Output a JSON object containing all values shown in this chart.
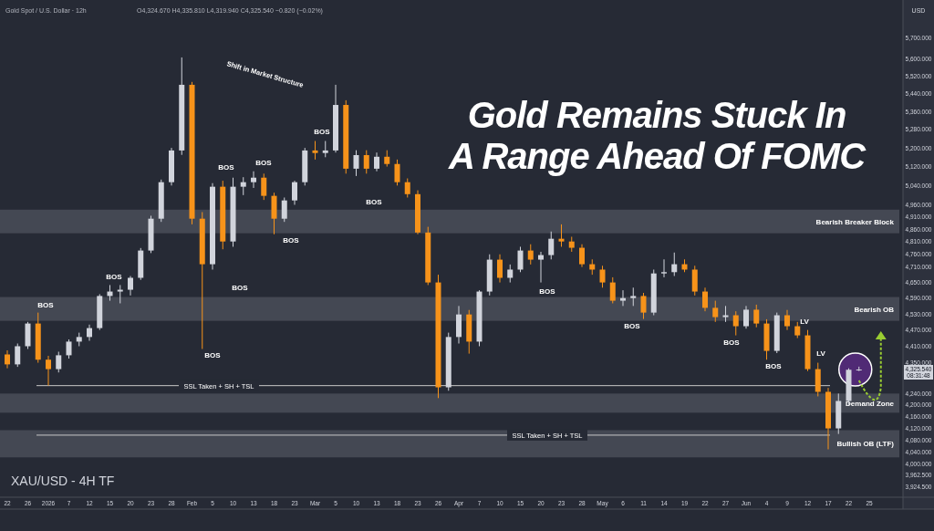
{
  "chart_data": {
    "type": "candlestick",
    "title": "Gold Remains Stuck In A Range Ahead Of FOMC",
    "subtitle": "XAU/USD - 4H TF",
    "categories": [
      "22",
      null,
      "26",
      null,
      "2026",
      null,
      "7",
      null,
      "12",
      null,
      "15",
      null,
      "20",
      null,
      "23",
      null,
      "28",
      null,
      "Feb",
      null,
      "5",
      null,
      "10",
      null,
      "13",
      null,
      "18",
      null,
      "23",
      null,
      "Mar",
      null,
      "5",
      null,
      "10",
      null,
      "13",
      null,
      "18",
      null,
      "23",
      null,
      "26",
      null,
      "Apr",
      null,
      "7",
      null,
      "10",
      null,
      "15",
      null,
      "20",
      null,
      "23",
      null,
      "28",
      null,
      "May",
      null,
      "6",
      null,
      "11",
      null,
      "14",
      null,
      "19",
      null,
      "22",
      null,
      "27",
      null,
      "Jun",
      null,
      "4",
      null,
      "9",
      null,
      "12",
      null,
      "17",
      null,
      "22",
      null,
      "25"
    ],
    "ohlc": [
      [
        4380,
        4395,
        4330,
        4344
      ],
      [
        4344,
        4420,
        4335,
        4410
      ],
      [
        4410,
        4500,
        4400,
        4494
      ],
      [
        4494,
        4535,
        4350,
        4361
      ],
      [
        4361,
        4375,
        4268,
        4327
      ],
      [
        4327,
        4390,
        4315,
        4377
      ],
      [
        4377,
        4435,
        4365,
        4427
      ],
      [
        4427,
        4460,
        4410,
        4444
      ],
      [
        4444,
        4490,
        4430,
        4477
      ],
      [
        4477,
        4605,
        4470,
        4598
      ],
      [
        4598,
        4640,
        4580,
        4615
      ],
      [
        4615,
        4640,
        4570,
        4622
      ],
      [
        4622,
        4675,
        4600,
        4668
      ],
      [
        4668,
        4785,
        4660,
        4775
      ],
      [
        4775,
        4915,
        4765,
        4903
      ],
      [
        4903,
        5065,
        4890,
        5054
      ],
      [
        5054,
        5200,
        5040,
        5189
      ],
      [
        5189,
        5606,
        5170,
        5480
      ],
      [
        5480,
        5493,
        4880,
        4903
      ],
      [
        4903,
        4930,
        4400,
        4721
      ],
      [
        4721,
        5050,
        4700,
        5035
      ],
      [
        5035,
        5060,
        4780,
        4811
      ],
      [
        4811,
        5073,
        4790,
        5035
      ],
      [
        5035,
        5075,
        5000,
        5054
      ],
      [
        5054,
        5100,
        5030,
        5073
      ],
      [
        5073,
        5090,
        4980,
        4997
      ],
      [
        4997,
        5010,
        4840,
        4903
      ],
      [
        4903,
        4990,
        4890,
        4978
      ],
      [
        4978,
        5060,
        4960,
        5054
      ],
      [
        5054,
        5200,
        5040,
        5189
      ],
      [
        5189,
        5230,
        5150,
        5178
      ],
      [
        5178,
        5230,
        5160,
        5189
      ],
      [
        5189,
        5480,
        5180,
        5389
      ],
      [
        5389,
        5410,
        5090,
        5111
      ],
      [
        5111,
        5190,
        5080,
        5169
      ],
      [
        5169,
        5190,
        5090,
        5111
      ],
      [
        5111,
        5180,
        5100,
        5162
      ],
      [
        5162,
        5190,
        5120,
        5131
      ],
      [
        5131,
        5150,
        5040,
        5054
      ],
      [
        5054,
        5070,
        4990,
        5004
      ],
      [
        5004,
        5020,
        4840,
        4847
      ],
      [
        4847,
        4870,
        4640,
        4650
      ],
      [
        4650,
        4680,
        4224,
        4262
      ],
      [
        4262,
        4460,
        4250,
        4444
      ],
      [
        4444,
        4560,
        4420,
        4528
      ],
      [
        4528,
        4545,
        4383,
        4427
      ],
      [
        4427,
        4620,
        4410,
        4615
      ],
      [
        4615,
        4760,
        4600,
        4739
      ],
      [
        4739,
        4760,
        4650,
        4668
      ],
      [
        4668,
        4720,
        4650,
        4700
      ],
      [
        4700,
        4790,
        4690,
        4775
      ],
      [
        4775,
        4800,
        4720,
        4739
      ],
      [
        4739,
        4770,
        4650,
        4757
      ],
      [
        4757,
        4851,
        4740,
        4822
      ],
      [
        4822,
        4880,
        4790,
        4811
      ],
      [
        4811,
        4830,
        4770,
        4786
      ],
      [
        4786,
        4800,
        4710,
        4721
      ],
      [
        4721,
        4740,
        4680,
        4700
      ],
      [
        4700,
        4715,
        4630,
        4650
      ],
      [
        4650,
        4670,
        4570,
        4580
      ],
      [
        4580,
        4620,
        4560,
        4590
      ],
      [
        4590,
        4630,
        4560,
        4598
      ],
      [
        4598,
        4610,
        4511,
        4535
      ],
      [
        4535,
        4700,
        4525,
        4685
      ],
      [
        4685,
        4740,
        4670,
        4690
      ],
      [
        4690,
        4767,
        4675,
        4721
      ],
      [
        4721,
        4740,
        4690,
        4700
      ],
      [
        4700,
        4715,
        4600,
        4615
      ],
      [
        4615,
        4630,
        4540,
        4553
      ],
      [
        4553,
        4580,
        4500,
        4518
      ],
      [
        4518,
        4560,
        4500,
        4525
      ],
      [
        4525,
        4540,
        4450,
        4484
      ],
      [
        4484,
        4560,
        4475,
        4546
      ],
      [
        4546,
        4565,
        4480,
        4494
      ],
      [
        4494,
        4510,
        4361,
        4393
      ],
      [
        4393,
        4535,
        4385,
        4525
      ],
      [
        4525,
        4545,
        4470,
        4484
      ],
      [
        4484,
        4500,
        4440,
        4450
      ],
      [
        4450,
        4470,
        4320,
        4327
      ],
      [
        4327,
        4350,
        4230,
        4246
      ],
      [
        4246,
        4260,
        4048,
        4119
      ],
      [
        4119,
        4240,
        4100,
        4214
      ],
      [
        4214,
        4330,
        4200,
        4324.67
      ],
      [
        4324.67,
        4335.81,
        4319.94,
        4325.54
      ],
      null
    ],
    "colors": [
      "#f7931a",
      "#d1d4dc",
      "#d1d4dc",
      "#f7931a",
      "#f7931a",
      "#d1d4dc",
      "#d1d4dc",
      "#d1d4dc",
      "#d1d4dc",
      "#d1d4dc",
      "#d1d4dc",
      "#d1d4dc",
      "#d1d4dc",
      "#d1d4dc",
      "#d1d4dc",
      "#d1d4dc",
      "#d1d4dc",
      "#d1d4dc",
      "#f7931a",
      "#f7931a",
      "#d1d4dc",
      "#f7931a",
      "#d1d4dc",
      "#d1d4dc",
      "#d1d4dc",
      "#f7931a",
      "#f7931a",
      "#d1d4dc",
      "#d1d4dc",
      "#d1d4dc",
      "#f7931a",
      "#d1d4dc",
      "#d1d4dc",
      "#f7931a",
      "#d1d4dc",
      "#f7931a",
      "#d1d4dc",
      "#f7931a",
      "#f7931a",
      "#f7931a",
      "#f7931a",
      "#f7931a",
      "#f7931a",
      "#d1d4dc",
      "#d1d4dc",
      "#f7931a",
      "#d1d4dc",
      "#d1d4dc",
      "#f7931a",
      "#d1d4dc",
      "#d1d4dc",
      "#f7931a",
      "#d1d4dc",
      "#d1d4dc",
      "#f7931a",
      "#f7931a",
      "#f7931a",
      "#f7931a",
      "#f7931a",
      "#f7931a",
      "#d1d4dc",
      "#d1d4dc",
      "#f7931a",
      "#d1d4dc",
      "#d1d4dc",
      "#d1d4dc",
      "#f7931a",
      "#f7931a",
      "#f7931a",
      "#f7931a",
      "#d1d4dc",
      "#f7931a",
      "#d1d4dc",
      "#f7931a",
      "#f7931a",
      "#d1d4dc",
      "#f7931a",
      "#f7931a",
      "#f7931a",
      "#f7931a",
      "#f7931a",
      "#d1d4dc",
      "#d1d4dc",
      "#d1d4dc",
      null
    ],
    "log": "y",
    "ylim": [
      3890,
      5880
    ],
    "yticks": [
      {
        "value": 5700,
        "label": "5,700.000"
      },
      {
        "value": 5600,
        "label": "5,600.000"
      },
      {
        "value": 5520,
        "label": "5,520.000"
      },
      {
        "value": 5440,
        "label": "5,440.000"
      },
      {
        "value": 5360,
        "label": "5,360.000"
      },
      {
        "value": 5280,
        "label": "5,280.000"
      },
      {
        "value": 5200,
        "label": "5,200.000"
      },
      {
        "value": 5120,
        "label": "5,120.000"
      },
      {
        "value": 5040,
        "label": "5,040.000"
      },
      {
        "value": 4960,
        "label": "4,960.000"
      },
      {
        "value": 4910,
        "label": "4,910.000"
      },
      {
        "value": 4860,
        "label": "4,860.000"
      },
      {
        "value": 4810,
        "label": "4,810.000"
      },
      {
        "value": 4760,
        "label": "4,760.000"
      },
      {
        "value": 4710,
        "label": "4,710.000"
      },
      {
        "value": 4650,
        "label": "4,650.000"
      },
      {
        "value": 4590,
        "label": "4,590.000"
      },
      {
        "value": 4530,
        "label": "4,530.000"
      },
      {
        "value": 4470,
        "label": "4,470.000"
      },
      {
        "value": 4410,
        "label": "4,410.000"
      },
      {
        "value": 4350,
        "label": "4,350.000"
      },
      {
        "value": 4240,
        "label": "4,240.000"
      },
      {
        "value": 4200,
        "label": "4,200.000"
      },
      {
        "value": 4160,
        "label": "4,160.000"
      },
      {
        "value": 4120,
        "label": "4,120.000"
      },
      {
        "value": 4080,
        "label": "4,080.000"
      },
      {
        "value": 4040,
        "label": "4,040.000"
      },
      {
        "value": 4000,
        "label": "4,000.000"
      },
      {
        "value": 3962.5,
        "label": "3,962.500"
      },
      {
        "value": 3924.5,
        "label": "3,924.500"
      }
    ],
    "bands": [
      {
        "axis": "y",
        "from": 4844,
        "to": 4940,
        "label": "Bearish Breaker Block",
        "color": "#5d606b"
      },
      {
        "axis": "y",
        "from": 4504,
        "to": 4594,
        "label": "Bearish OB",
        "color": "#5d606b"
      },
      {
        "axis": "y",
        "from": 4173,
        "to": 4240,
        "label": "Demand Zone",
        "color": "#5d606b"
      },
      {
        "axis": "y",
        "from": 4021,
        "to": 4113,
        "label": "Bullish OB (LTF)",
        "color": "#5d606b"
      }
    ],
    "ref_lines": [
      {
        "axis": "y",
        "value": 4268,
        "label": "SSL Taken + SH + TSL",
        "color": "#c8c8c8"
      },
      {
        "axis": "y",
        "value": 4096,
        "label": "SSL Taken + SH + TSL",
        "color": "#c8c8c8"
      }
    ],
    "annotations": [
      "Gold Spot / U.S. Dollar · 12h",
      "O4,324.670 H4,335.810 L4,319.940 C4,325.540 −0.820 (−0.02%)",
      "USD",
      "BOS",
      "BOS",
      "BOS",
      "BOS",
      "BOS",
      "BOS",
      "BOS",
      "BOS",
      "BOS",
      "BOS",
      "BOS",
      "BOS",
      "BOS",
      "Shift in Market Structure",
      "LV",
      "LV",
      "4,325.540",
      "08:31:48"
    ]
  }
}
